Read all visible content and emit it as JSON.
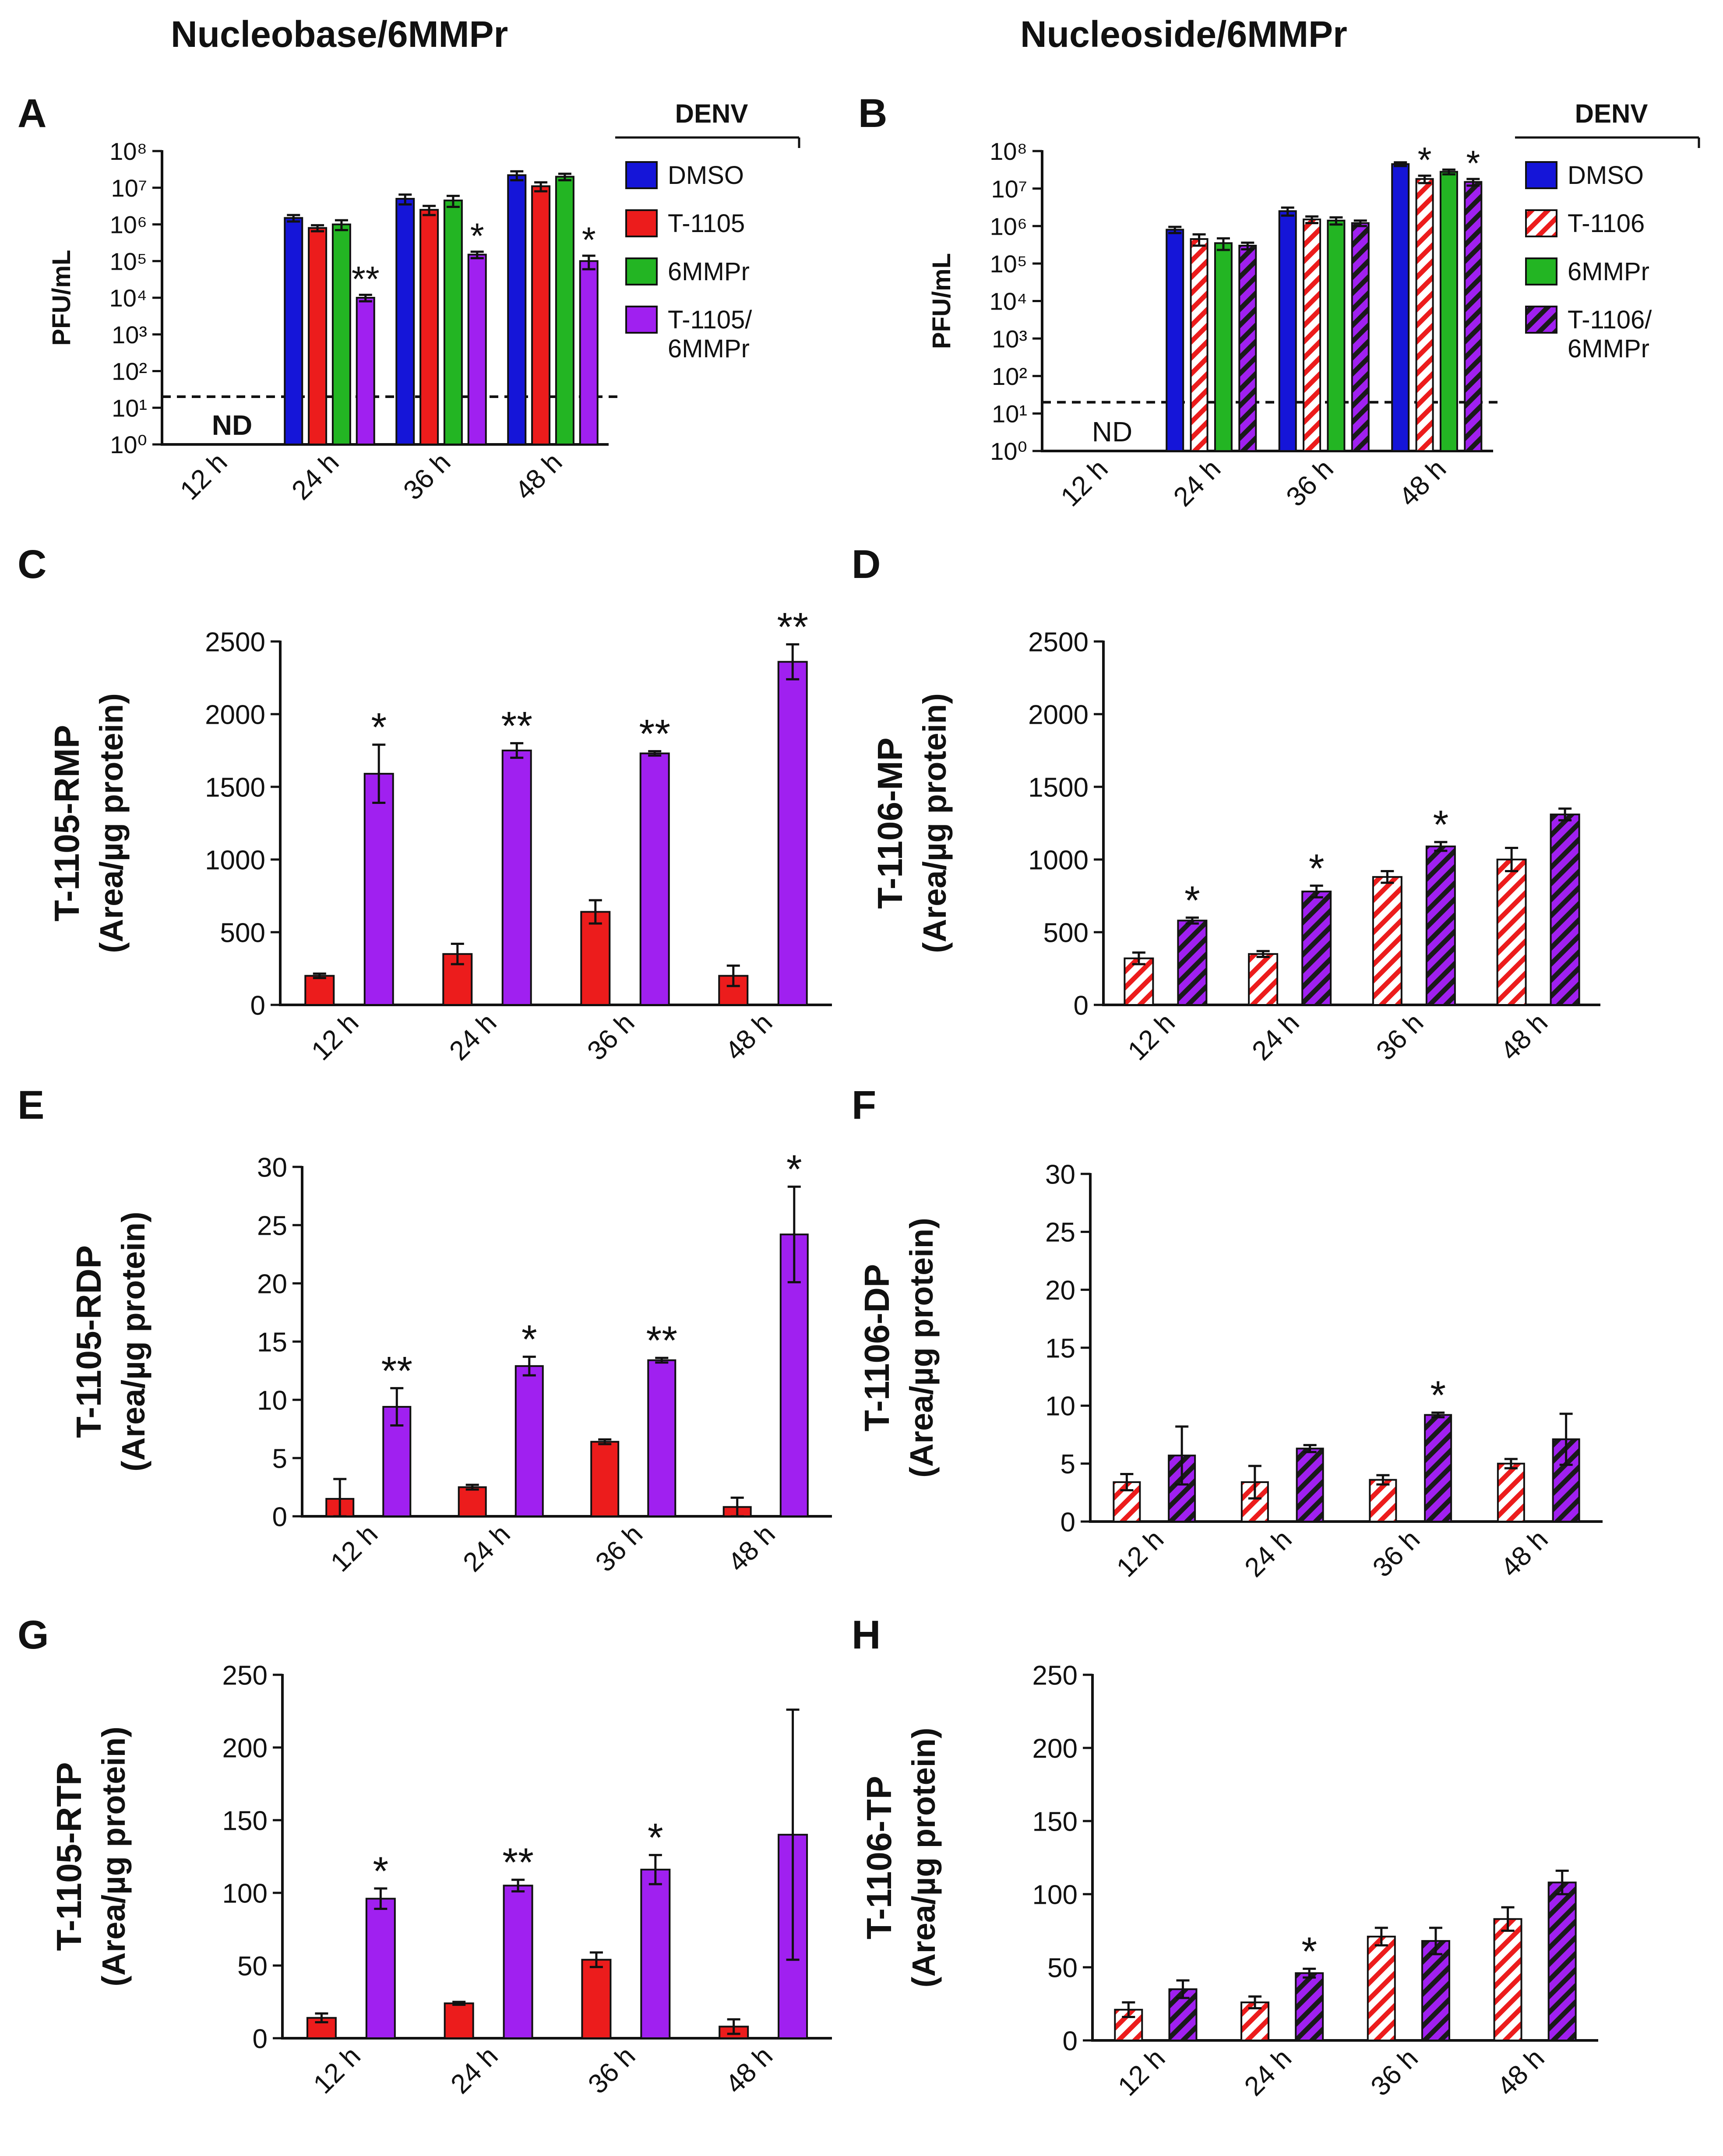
{
  "headers": {
    "left": "Nucleobase/6MMPr",
    "right": "Nucleoside/6MMPr"
  },
  "colors": {
    "blue": "#1515d8",
    "red": "#ec1c1c",
    "green": "#23b523",
    "purple": "#a020f0"
  },
  "chart_data": [
    {
      "id": "A",
      "panel": "A",
      "type": "bar",
      "scale": "log",
      "title": "",
      "xlabel": "",
      "ylabel": "PFU/mL",
      "categories": [
        "12 h",
        "24 h",
        "36 h",
        "48 h"
      ],
      "yticks": [
        "10⁰",
        "10¹",
        "10²",
        "10³",
        "10⁴",
        "10⁵",
        "10⁶",
        "10⁷",
        "10⁸"
      ],
      "ylim": [
        1,
        100000000
      ],
      "detection_limit": 20,
      "nd_label": "ND",
      "legend": {
        "title": "DENV",
        "entries": [
          "DMSO",
          "T-1105",
          "6MMPr",
          "T-1105/\n6MMPr"
        ]
      },
      "series": [
        {
          "name": "DMSO",
          "color": "blue",
          "pattern": "solid",
          "values": [
            null,
            1500000,
            5000000,
            22000000
          ],
          "errors": [
            null,
            300000,
            1500000,
            6000000
          ],
          "sig": [
            "",
            "",
            "",
            ""
          ]
        },
        {
          "name": "T-1105",
          "color": "red",
          "pattern": "solid",
          "values": [
            null,
            800000,
            2500000,
            11000000
          ],
          "errors": [
            null,
            150000,
            700000,
            3000000
          ],
          "sig": [
            "",
            "",
            "",
            ""
          ]
        },
        {
          "name": "6MMPr",
          "color": "green",
          "pattern": "solid",
          "values": [
            null,
            1000000,
            4500000,
            20000000
          ],
          "errors": [
            null,
            300000,
            1500000,
            4000000
          ],
          "sig": [
            "",
            "",
            "",
            ""
          ]
        },
        {
          "name": "T-1105/6MMPr",
          "color": "purple",
          "pattern": "solid",
          "values": [
            null,
            10000,
            150000,
            100000
          ],
          "errors": [
            null,
            2000,
            30000,
            40000
          ],
          "sig": [
            "",
            "**",
            "*",
            "*"
          ]
        }
      ]
    },
    {
      "id": "B",
      "panel": "B",
      "type": "bar",
      "scale": "log",
      "title": "",
      "xlabel": "",
      "ylabel": "PFU/mL",
      "categories": [
        "12 h",
        "24 h",
        "36 h",
        "48 h"
      ],
      "yticks": [
        "10⁰",
        "10¹",
        "10²",
        "10³",
        "10⁴",
        "10⁵",
        "10⁶",
        "10⁷",
        "10⁸"
      ],
      "ylim": [
        1,
        100000000
      ],
      "detection_limit": 20,
      "nd_label": "ND",
      "legend": {
        "title": "DENV",
        "entries": [
          "DMSO",
          "T-1106",
          "6MMPr",
          "T-1106/\n6MMPr"
        ]
      },
      "series": [
        {
          "name": "DMSO",
          "color": "blue",
          "pattern": "solid",
          "values": [
            null,
            800000,
            2500000,
            45000000
          ],
          "errors": [
            null,
            150000,
            600000,
            5000000
          ],
          "sig": [
            "",
            "",
            "",
            ""
          ]
        },
        {
          "name": "T-1106",
          "color": "red",
          "pattern": "hatch",
          "values": [
            null,
            450000,
            1500000,
            18000000
          ],
          "errors": [
            null,
            150000,
            300000,
            4000000
          ],
          "sig": [
            "",
            "",
            "",
            "*"
          ]
        },
        {
          "name": "6MMPr",
          "color": "green",
          "pattern": "solid",
          "values": [
            null,
            350000,
            1400000,
            28000000
          ],
          "errors": [
            null,
            120000,
            300000,
            4000000
          ],
          "sig": [
            "",
            "",
            "",
            ""
          ]
        },
        {
          "name": "T-1106/6MMPr",
          "color": "purple",
          "pattern": "hatch",
          "values": [
            null,
            300000,
            1200000,
            15000000
          ],
          "errors": [
            null,
            60000,
            200000,
            3000000
          ],
          "sig": [
            "",
            "",
            "",
            "*"
          ]
        }
      ]
    },
    {
      "id": "C",
      "panel": "C",
      "type": "bar",
      "scale": "linear",
      "title": "",
      "xlabel": "",
      "ylabel": "T-1105-RMP",
      "ylabel2": "(Area/µg protein)",
      "categories": [
        "12 h",
        "24 h",
        "36 h",
        "48 h"
      ],
      "ylim": [
        0,
        2500
      ],
      "yticks": [
        0,
        500,
        1000,
        1500,
        2000,
        2500
      ],
      "series": [
        {
          "name": "T-1105",
          "color": "red",
          "pattern": "solid",
          "values": [
            200,
            350,
            640,
            200
          ],
          "errors": [
            15,
            70,
            80,
            70
          ],
          "sig": [
            "",
            "",
            "",
            ""
          ]
        },
        {
          "name": "T-1105/6MMPr",
          "color": "purple",
          "pattern": "solid",
          "values": [
            1590,
            1750,
            1730,
            2360
          ],
          "errors": [
            200,
            50,
            15,
            120
          ],
          "sig": [
            "*",
            "**",
            "**",
            "**"
          ]
        }
      ]
    },
    {
      "id": "D",
      "panel": "D",
      "type": "bar",
      "scale": "linear",
      "title": "",
      "xlabel": "",
      "ylabel": "T-1106-MP",
      "ylabel2": "(Area/µg protein)",
      "categories": [
        "12 h",
        "24 h",
        "36 h",
        "48 h"
      ],
      "ylim": [
        0,
        2500
      ],
      "yticks": [
        0,
        500,
        1000,
        1500,
        2000,
        2500
      ],
      "series": [
        {
          "name": "T-1106",
          "color": "red",
          "pattern": "hatch",
          "values": [
            320,
            350,
            880,
            1000
          ],
          "errors": [
            40,
            20,
            40,
            80
          ],
          "sig": [
            "",
            "",
            "",
            ""
          ]
        },
        {
          "name": "T-1106/6MMPr",
          "color": "purple",
          "pattern": "hatch",
          "values": [
            580,
            780,
            1090,
            1310
          ],
          "errors": [
            20,
            40,
            30,
            40
          ],
          "sig": [
            "*",
            "*",
            "*",
            ""
          ]
        }
      ]
    },
    {
      "id": "E",
      "panel": "E",
      "type": "bar",
      "scale": "linear",
      "title": "",
      "xlabel": "",
      "ylabel": "T-1105-RDP",
      "ylabel2": "(Area/µg protein)",
      "categories": [
        "12 h",
        "24 h",
        "36 h",
        "48 h"
      ],
      "ylim": [
        0,
        30
      ],
      "yticks": [
        0,
        5,
        10,
        15,
        20,
        25,
        30
      ],
      "series": [
        {
          "name": "T-1105",
          "color": "red",
          "pattern": "solid",
          "values": [
            1.5,
            2.5,
            6.4,
            0.8
          ],
          "errors": [
            1.7,
            0.2,
            0.2,
            0.8
          ],
          "sig": [
            "",
            "",
            "",
            ""
          ]
        },
        {
          "name": "T-1105/6MMPr",
          "color": "purple",
          "pattern": "solid",
          "values": [
            9.4,
            12.9,
            13.4,
            24.2
          ],
          "errors": [
            1.6,
            0.8,
            0.2,
            4.1
          ],
          "sig": [
            "**",
            "*",
            "**",
            "*"
          ]
        }
      ]
    },
    {
      "id": "F",
      "panel": "F",
      "type": "bar",
      "scale": "linear",
      "title": "",
      "xlabel": "",
      "ylabel": "T-1106-DP",
      "ylabel2": "(Area/µg protein)",
      "categories": [
        "12 h",
        "24 h",
        "36 h",
        "48 h"
      ],
      "ylim": [
        0,
        30
      ],
      "yticks": [
        0,
        5,
        10,
        15,
        20,
        25,
        30
      ],
      "series": [
        {
          "name": "T-1106",
          "color": "red",
          "pattern": "hatch",
          "values": [
            3.4,
            3.4,
            3.6,
            5.0
          ],
          "errors": [
            0.7,
            1.4,
            0.4,
            0.4
          ],
          "sig": [
            "",
            "",
            "",
            ""
          ]
        },
        {
          "name": "T-1106/6MMPr",
          "color": "purple",
          "pattern": "hatch",
          "values": [
            5.7,
            6.3,
            9.2,
            7.1
          ],
          "errors": [
            2.5,
            0.3,
            0.2,
            2.2
          ],
          "sig": [
            "",
            "",
            "*",
            ""
          ]
        }
      ]
    },
    {
      "id": "G",
      "panel": "G",
      "type": "bar",
      "scale": "linear",
      "title": "",
      "xlabel": "",
      "ylabel": "T-1105-RTP",
      "ylabel2": "(Area/µg protein)",
      "categories": [
        "12 h",
        "24 h",
        "36 h",
        "48 h"
      ],
      "ylim": [
        0,
        250
      ],
      "yticks": [
        0,
        50,
        100,
        150,
        200,
        250
      ],
      "series": [
        {
          "name": "T-1105",
          "color": "red",
          "pattern": "solid",
          "values": [
            14,
            24,
            54,
            8
          ],
          "errors": [
            3,
            1,
            5,
            5
          ],
          "sig": [
            "",
            "",
            "",
            ""
          ]
        },
        {
          "name": "T-1105/6MMPr",
          "color": "purple",
          "pattern": "solid",
          "values": [
            96,
            105,
            116,
            140
          ],
          "errors": [
            7,
            4,
            10,
            86
          ],
          "sig": [
            "*",
            "**",
            "*",
            ""
          ]
        }
      ]
    },
    {
      "id": "H",
      "panel": "H",
      "type": "bar",
      "scale": "linear",
      "title": "",
      "xlabel": "",
      "ylabel": "T-1106-TP",
      "ylabel2": "(Area/µg protein)",
      "categories": [
        "12 h",
        "24 h",
        "36 h",
        "48 h"
      ],
      "ylim": [
        0,
        250
      ],
      "yticks": [
        0,
        50,
        100,
        150,
        200,
        250
      ],
      "series": [
        {
          "name": "T-1106",
          "color": "red",
          "pattern": "hatch",
          "values": [
            21,
            26,
            71,
            83
          ],
          "errors": [
            5,
            4,
            6,
            8
          ],
          "sig": [
            "",
            "",
            "",
            ""
          ]
        },
        {
          "name": "T-1106/6MMPr",
          "color": "purple",
          "pattern": "hatch",
          "values": [
            35,
            46,
            68,
            108
          ],
          "errors": [
            6,
            3,
            9,
            8
          ],
          "sig": [
            "",
            "*",
            "",
            ""
          ]
        }
      ]
    }
  ]
}
